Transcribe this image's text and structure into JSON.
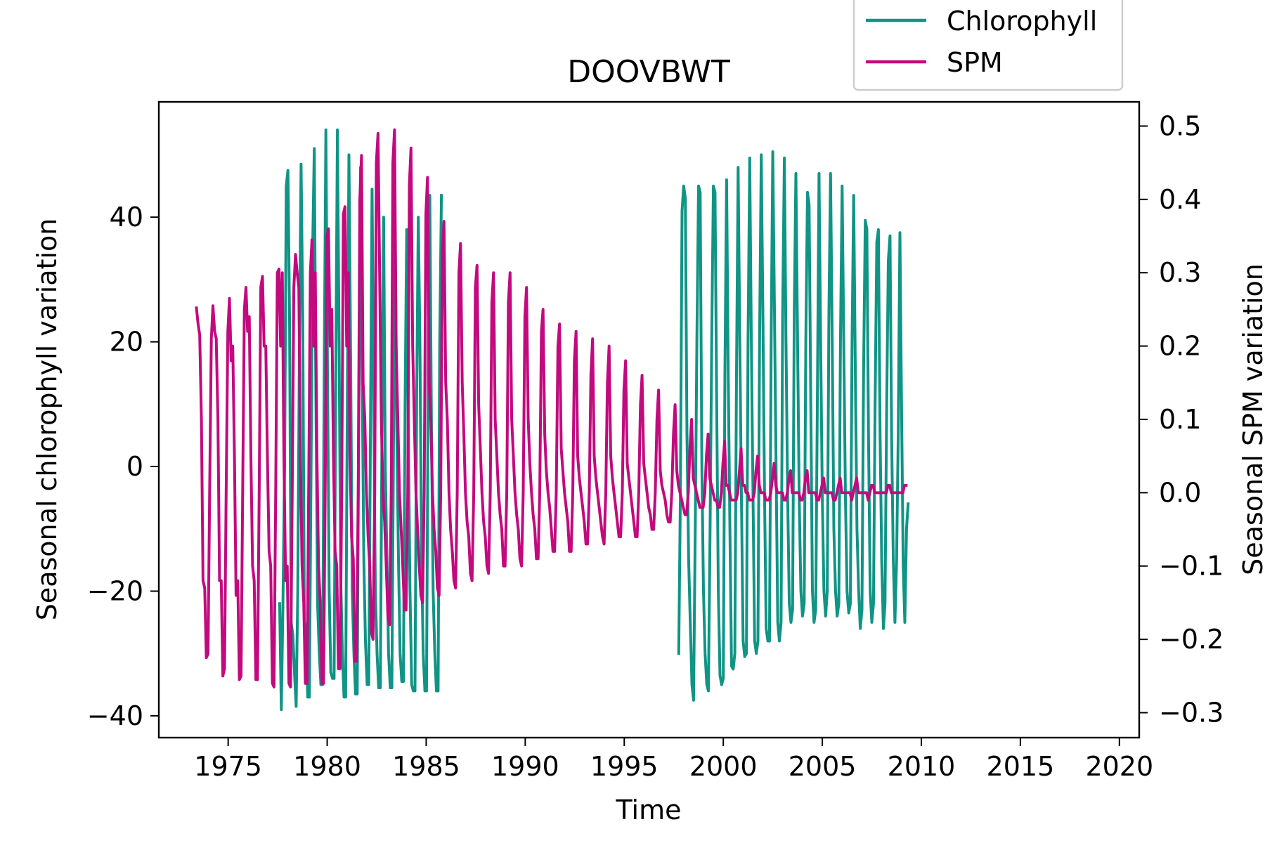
{
  "chart_data": {
    "type": "line",
    "title": "DOOVBWT",
    "xlabel": "Time",
    "ylabel": "Seasonal chlorophyll variation",
    "y2label": "Seasonal SPM variation",
    "xlim": [
      1971.5,
      2021.0
    ],
    "ylim": [
      -43.5,
      58.5
    ],
    "y2lim": [
      -0.334,
      0.533
    ],
    "xticks": [
      1975,
      1980,
      1985,
      1990,
      1995,
      2000,
      2005,
      2010,
      2015,
      2020
    ],
    "yticks": [
      -40,
      -20,
      0,
      20,
      40
    ],
    "y2ticks": [
      -0.3,
      -0.2,
      -0.1,
      0.0,
      0.1,
      0.2,
      0.3,
      0.4,
      0.5
    ],
    "grid": false,
    "legend_position": "top-right",
    "series": [
      {
        "name": "Chlorophyll",
        "color": "#109485",
        "axis": "left",
        "segments": [
          {
            "start": 1977.6,
            "step": 0.0833333,
            "peaks": [
              47.5,
              48.5,
              51,
              54,
              54,
              50,
              48,
              44.5,
              40,
              37.5,
              38,
              40,
              43.5,
              43.5
            ],
            "troughs": [
              -39,
              -38.5,
              -37,
              -35,
              -34,
              -37,
              -36.5,
              -35,
              -35.5,
              -35.5,
              -34.5,
              -36,
              -36
            ],
            "values": [
              -22,
              -39,
              -22,
              0,
              45,
              47.5,
              24,
              -25,
              -27,
              -33,
              -38.5,
              -20,
              20,
              48.5,
              24,
              -25,
              -26,
              -37,
              -37,
              -2,
              35,
              51,
              10,
              -22,
              -30,
              -35,
              -35,
              15,
              54,
              15,
              -20,
              -33,
              -34,
              -34,
              15,
              54,
              20,
              -18,
              -30,
              -37,
              -37,
              10,
              50,
              18,
              -20,
              -30,
              -36.5,
              -36.5,
              10,
              48,
              15,
              -15,
              -28,
              -35,
              -35,
              5,
              44.5,
              10,
              -20,
              -30,
              -35.5,
              -35.5,
              5,
              40,
              0,
              -15,
              -30,
              -35.5,
              -35.5,
              5,
              37.5,
              5,
              -15,
              -30,
              -34.5,
              -34.5,
              10,
              38,
              5,
              -20,
              -35,
              -36,
              -36,
              10,
              40,
              20,
              -15,
              -30,
              -36,
              -36,
              15,
              43.5,
              5,
              -20,
              -30,
              -36,
              -36,
              20,
              43.5
            ]
          },
          {
            "start": 1997.75,
            "step": 0.0833333,
            "values": [
              -30,
              -5,
              41,
              45,
              43,
              5,
              -15,
              -25,
              -35,
              -37.5,
              -10,
              20,
              45,
              44,
              0,
              -20,
              -30,
              -35,
              -36,
              -10,
              20,
              45,
              44,
              10,
              -20,
              -33.5,
              -35,
              -34,
              15,
              46,
              15,
              -10,
              -32,
              -32.5,
              -30,
              15,
              48,
              20,
              -5,
              -28,
              -30.5,
              -30,
              20,
              49.5,
              20,
              -5,
              -28,
              -30,
              -28,
              20,
              50,
              25,
              -5,
              -26,
              -28,
              -28,
              20,
              50.5,
              25,
              0,
              -25,
              -28,
              -25,
              25,
              49.5,
              20,
              -5,
              -22,
              -25,
              -23,
              25,
              47,
              20,
              -5,
              -20,
              -24,
              -22,
              20,
              44,
              42,
              10,
              -20,
              -25,
              -23,
              10,
              47,
              20,
              -5,
              -20,
              -24,
              -20,
              25,
              47,
              20,
              -10,
              -20,
              -24,
              -22,
              20,
              45,
              20,
              -5,
              -20,
              -23.5,
              -22,
              20,
              43.5,
              15,
              -10,
              -20,
              -26,
              -23,
              15,
              39.5,
              38,
              5,
              -20,
              -25,
              -22,
              10,
              36,
              38,
              5,
              -15,
              -26,
              -22,
              10,
              33,
              37,
              5,
              -15,
              -25,
              -15,
              5,
              37.5,
              10,
              -16,
              -25,
              -10,
              -6
            ]
          }
        ]
      },
      {
        "name": "SPM",
        "color": "#c20a7e",
        "axis": "right",
        "segments": [
          {
            "start": 1973.4,
            "step": 0.0833333,
            "values": [
              0.252,
              0.23,
              0.215,
              0.1,
              -0.12,
              -0.13,
              -0.225,
              -0.22,
              0,
              0.21,
              0.255,
              0.22,
              0.21,
              0.1,
              -0.12,
              -0.12,
              -0.25,
              -0.24,
              0,
              0.22,
              0.265,
              0.18,
              0.2,
              0.05,
              -0.14,
              -0.12,
              -0.255,
              -0.25,
              0,
              0.25,
              0.28,
              0.22,
              0.24,
              0.05,
              -0.1,
              -0.12,
              -0.255,
              -0.255,
              0,
              0.28,
              0.295,
              0.2,
              0.2,
              0.05,
              -0.08,
              -0.1,
              -0.26,
              -0.265,
              0,
              0.3,
              0.305,
              0.2,
              0.3,
              0.05,
              -0.12,
              -0.1,
              -0.26,
              -0.265,
              0,
              0.28,
              0.325,
              0.3,
              0.28,
              0.05,
              -0.1,
              -0.15,
              -0.26,
              -0.26,
              0,
              0.3,
              0.345,
              0.2,
              0.3,
              0.05,
              -0.1,
              -0.15,
              -0.26,
              -0.26,
              0,
              0.35,
              0.36,
              0.2,
              0.25,
              0.05,
              -0.08,
              -0.1,
              -0.24,
              -0.24,
              0,
              0.38,
              0.39,
              0.2,
              0.3,
              0.05,
              -0.06,
              -0.09,
              -0.23,
              -0.23,
              0,
              0.4,
              0.46,
              0.15,
              0.1,
              0.0,
              -0.06,
              -0.1,
              -0.19,
              -0.2,
              0,
              0.45,
              0.49,
              0.3,
              0.1,
              0.0,
              -0.04,
              -0.1,
              -0.17,
              -0.18,
              0,
              0.45,
              0.495,
              0.2,
              0.1,
              0.0,
              -0.05,
              -0.1,
              -0.16,
              -0.16,
              0,
              0.42,
              0.47,
              0.2,
              0.1,
              0.0,
              -0.05,
              -0.1,
              -0.14,
              -0.15,
              0,
              0.38,
              0.43,
              0.15,
              0.1,
              0.0,
              -0.05,
              -0.08,
              -0.13,
              -0.14,
              0,
              0.33,
              0.37,
              0.15,
              0.1,
              0.0,
              -0.05,
              -0.08,
              -0.12,
              -0.13,
              0,
              0.3,
              0.34,
              0.15,
              0.08,
              0.0,
              -0.04,
              -0.06,
              -0.11,
              -0.12,
              0,
              0.28,
              0.31,
              0.12,
              0.06,
              0.0,
              -0.04,
              -0.06,
              -0.1,
              -0.11,
              0,
              0.26,
              0.3,
              0.1,
              0.05,
              0.0,
              -0.03,
              -0.05,
              -0.1,
              -0.1,
              0,
              0.26,
              0.3,
              0.1,
              0.05,
              0.0,
              -0.03,
              -0.05,
              -0.09,
              -0.1,
              0,
              0.24,
              0.28,
              0.1,
              0.04,
              0.0,
              -0.03,
              -0.05,
              -0.09,
              -0.09,
              0,
              0.22,
              0.25,
              0.08,
              0.03,
              0.0,
              -0.02,
              -0.05,
              -0.08,
              -0.08,
              0,
              0.2,
              0.23,
              0.06,
              0.03,
              0.0,
              -0.02,
              -0.04,
              -0.08,
              -0.08,
              0,
              0.18,
              0.22,
              0.05,
              0.02,
              0.0,
              -0.02,
              -0.04,
              -0.07,
              -0.07,
              0,
              0.16,
              0.21,
              0.05,
              0.02,
              0.0,
              -0.02,
              -0.04,
              -0.06,
              -0.07,
              0,
              0.15,
              0.2,
              0.05,
              0.02,
              0.0,
              -0.02,
              -0.04,
              -0.06,
              -0.06,
              0,
              0.14,
              0.18,
              0.04,
              0.02,
              0.0,
              -0.02,
              -0.04,
              -0.06,
              -0.06,
              0,
              0.12,
              0.16,
              0.04,
              0.02,
              0.0,
              -0.02,
              -0.03,
              -0.05,
              -0.05,
              0,
              0.1,
              0.14,
              0.03,
              0.01,
              0.0,
              -0.01,
              -0.03,
              -0.04,
              -0.04,
              0,
              0.08,
              0.12,
              0.03,
              0.01,
              0.0,
              -0.01,
              -0.02,
              -0.03,
              -0.03,
              0,
              0.06,
              0.1,
              0.02,
              0.01,
              0.0,
              -0.01,
              -0.02,
              -0.02,
              -0.02,
              0,
              0.05,
              0.08,
              0.02,
              0.01,
              0.0,
              -0.01,
              -0.01,
              -0.02,
              -0.02,
              0,
              0.04,
              0.07,
              0.01,
              0.01,
              0.0,
              -0.01,
              -0.01,
              -0.01,
              -0.01,
              0,
              0.03,
              0.06,
              0.01,
              0.01,
              0.0,
              0.0,
              -0.01,
              -0.01,
              -0.01,
              0,
              0.03,
              0.05,
              0.01,
              0.0,
              0.0,
              0.0,
              -0.01,
              -0.01,
              -0.01,
              0,
              0.02,
              0.04,
              0.01,
              0.0,
              0.0,
              0.0,
              0.0,
              -0.01,
              -0.01,
              0,
              0.02,
              0.03,
              0.0,
              0.0,
              0.0,
              0.0,
              0.0,
              -0.01,
              -0.01,
              0,
              0.02,
              0.03,
              0.0,
              0.0,
              0.0,
              0.0,
              0.0,
              -0.01,
              -0.01,
              0,
              0.01,
              0.02,
              0.0,
              0.0,
              0.0,
              0.0,
              0.0,
              -0.01,
              -0.01,
              0,
              0.01,
              0.02,
              0.0,
              0.0,
              0.0,
              0.0,
              0.0,
              0.0,
              -0.01,
              0,
              0.01,
              0.02,
              0.0,
              0.0,
              0.0,
              0.0,
              0.0,
              0.0,
              -0.01,
              0,
              0.01,
              0.01,
              0.0,
              0.0,
              0.0,
              0.0,
              0.0,
              0.0,
              0.0,
              0,
              0.01,
              0.01,
              0.0,
              0.0,
              0.0,
              0.0,
              0.0,
              0.0,
              0.0,
              0,
              0.01,
              0.01
            ]
          }
        ]
      }
    ]
  }
}
